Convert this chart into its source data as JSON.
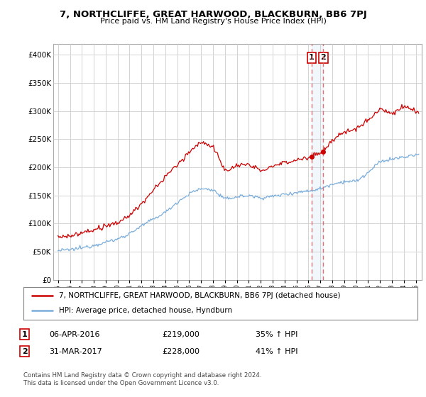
{
  "title": "7, NORTHCLIFFE, GREAT HARWOOD, BLACKBURN, BB6 7PJ",
  "subtitle": "Price paid vs. HM Land Registry's House Price Index (HPI)",
  "legend_line1": "7, NORTHCLIFFE, GREAT HARWOOD, BLACKBURN, BB6 7PJ (detached house)",
  "legend_line2": "HPI: Average price, detached house, Hyndburn",
  "red_color": "#cc0000",
  "blue_color": "#7aaddc",
  "shade_color": "#cce0f0",
  "dashed_color": "#dd6666",
  "marker1_year": 2016.27,
  "marker2_year": 2017.25,
  "annotation1": [
    "1",
    "06-APR-2016",
    "£219,000",
    "35% ↑ HPI"
  ],
  "annotation2": [
    "2",
    "31-MAR-2017",
    "£228,000",
    "41% ↑ HPI"
  ],
  "footer": "Contains HM Land Registry data © Crown copyright and database right 2024.\nThis data is licensed under the Open Government Licence v3.0.",
  "ylim": [
    0,
    420000
  ],
  "yticks": [
    0,
    50000,
    100000,
    150000,
    200000,
    250000,
    300000,
    350000,
    400000
  ],
  "ytick_labels": [
    "£0",
    "£50K",
    "£100K",
    "£150K",
    "£200K",
    "£250K",
    "£300K",
    "£350K",
    "£400K"
  ],
  "background_color": "#ffffff",
  "grid_color": "#cccccc",
  "hpi_knots_x": [
    1995,
    1996,
    1997,
    1998,
    1999,
    2000,
    2001,
    2002,
    2003,
    2004,
    2005,
    2006,
    2007,
    2008,
    2009,
    2010,
    2011,
    2012,
    2013,
    2014,
    2015,
    2016,
    2017,
    2018,
    2019,
    2020,
    2021,
    2022,
    2023,
    2024,
    2025
  ],
  "hpi_knots_y": [
    52000,
    54000,
    57000,
    61000,
    66000,
    72000,
    82000,
    95000,
    108000,
    120000,
    138000,
    153000,
    162000,
    160000,
    143000,
    148000,
    150000,
    145000,
    148000,
    152000,
    155000,
    158000,
    162000,
    170000,
    175000,
    175000,
    190000,
    210000,
    215000,
    218000,
    222000
  ],
  "prop_knots_x": [
    1995,
    1996,
    1997,
    1998,
    1999,
    2000,
    2001,
    2002,
    2003,
    2004,
    2005,
    2006,
    2007,
    2008,
    2009,
    2010,
    2011,
    2012,
    2013,
    2014,
    2015,
    2016.27,
    2017.25,
    2018,
    2019,
    2020,
    2021,
    2022,
    2023,
    2024,
    2025
  ],
  "prop_knots_y": [
    75000,
    78000,
    82000,
    87000,
    92000,
    100000,
    115000,
    135000,
    160000,
    185000,
    205000,
    230000,
    248000,
    240000,
    195000,
    205000,
    205000,
    195000,
    200000,
    208000,
    213000,
    219000,
    228000,
    248000,
    262000,
    268000,
    285000,
    305000,
    295000,
    308000,
    300000
  ]
}
